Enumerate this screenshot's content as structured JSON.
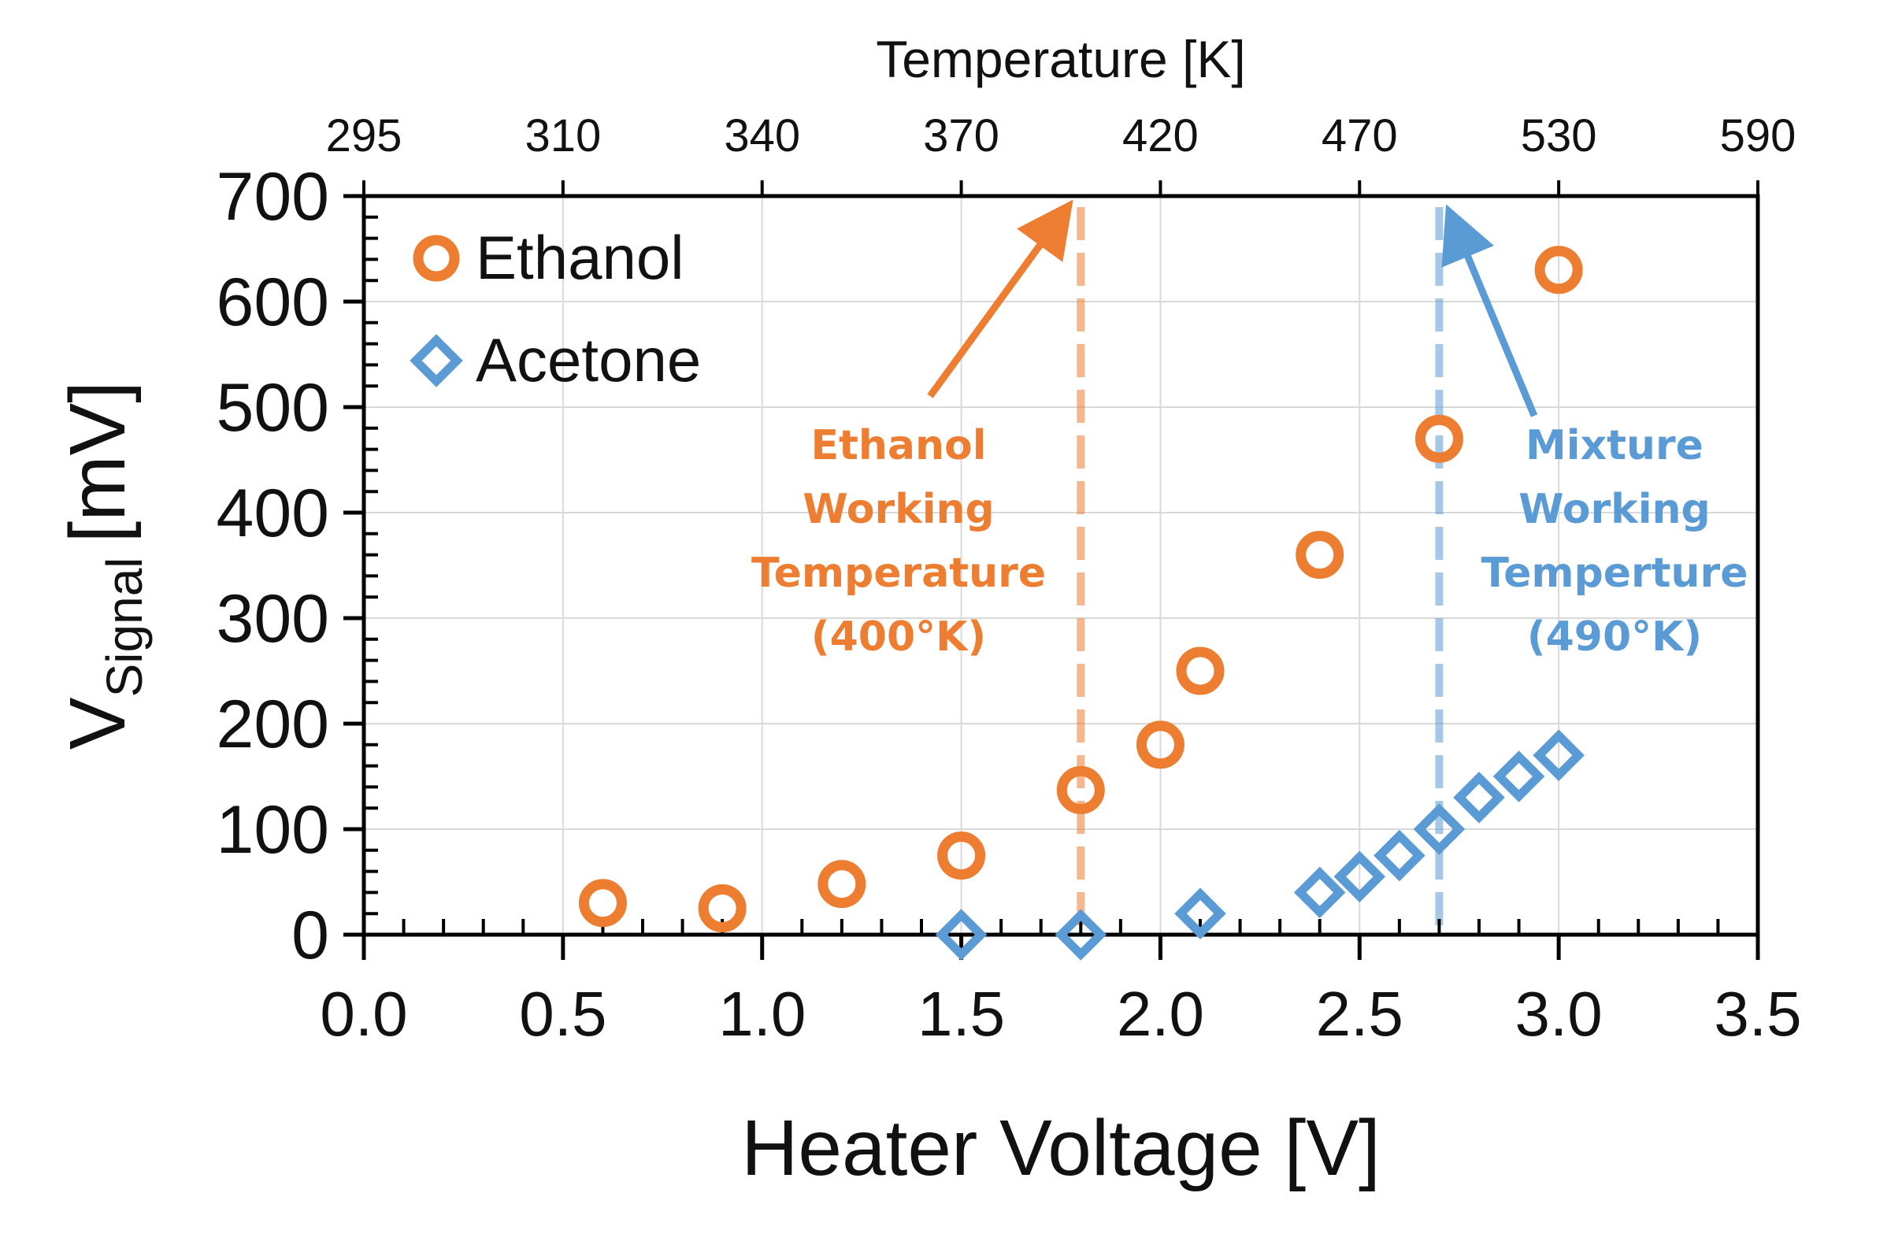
{
  "chart_data": {
    "type": "scatter",
    "xlabel": "Heater Voltage [V]",
    "ylabel_main": "V",
    "ylabel_sub": "Signal",
    "ylabel_unit": "[mV]",
    "xlim": [
      0.0,
      3.5
    ],
    "ylim": [
      0,
      700
    ],
    "x_ticks": [
      "0.0",
      "0.5",
      "1.0",
      "1.5",
      "2.0",
      "2.5",
      "3.0",
      "3.5"
    ],
    "y_ticks": [
      "0",
      "100",
      "200",
      "300",
      "400",
      "500",
      "600",
      "700"
    ],
    "top_axis": {
      "label": "Temperature [K]",
      "ticks": [
        "295",
        "310",
        "340",
        "370",
        "420",
        "470",
        "530",
        "590"
      ]
    },
    "grid": true,
    "legend_position": "top-left",
    "series": [
      {
        "name": "Ethanol",
        "marker": "circle",
        "color": "#ED7D31",
        "x": [
          0.6,
          0.9,
          1.2,
          1.5,
          1.8,
          2.0,
          2.1,
          2.4,
          2.7,
          3.0
        ],
        "y": [
          30,
          25,
          48,
          75,
          137,
          180,
          250,
          360,
          470,
          630
        ]
      },
      {
        "name": "Acetone",
        "marker": "diamond",
        "color": "#5B9BD5",
        "x": [
          1.5,
          1.8,
          2.1,
          2.4,
          2.5,
          2.6,
          2.7,
          2.8,
          2.9,
          3.0
        ],
        "y": [
          0,
          0,
          20,
          40,
          55,
          75,
          100,
          130,
          150,
          170
        ]
      }
    ],
    "annotations": [
      {
        "lines": [
          "Ethanol",
          "Working",
          "Temperature",
          "(400°K)"
        ],
        "color": "#ED7D31",
        "vline_x": 1.8
      },
      {
        "lines": [
          "Mixture",
          "Working",
          "Temperture",
          "(490°K)"
        ],
        "color": "#5B9BD5",
        "vline_x": 2.7
      }
    ]
  }
}
